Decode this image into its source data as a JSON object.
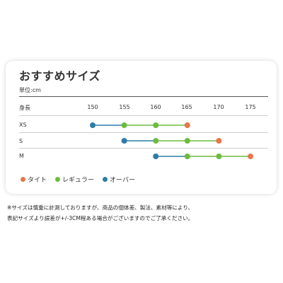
{
  "title": "おすすめサイズ",
  "unit_label": "単位:cm",
  "header_label": "身長",
  "ticks": [
    "150",
    "155",
    "160",
    "165",
    "170",
    "175"
  ],
  "rows": [
    {
      "label": "XS",
      "points": [
        150,
        155,
        160,
        165
      ],
      "kinds": [
        "over",
        "regular",
        "regular",
        "tight"
      ]
    },
    {
      "label": "S",
      "points": [
        155,
        160,
        165,
        170
      ],
      "kinds": [
        "over",
        "regular",
        "regular",
        "tight"
      ]
    },
    {
      "label": "M",
      "points": [
        160,
        165,
        170,
        175
      ],
      "kinds": [
        "over",
        "regular",
        "regular",
        "tight"
      ]
    }
  ],
  "legend": [
    {
      "key": "tight",
      "label": "タイト"
    },
    {
      "key": "regular",
      "label": "レギュラー"
    },
    {
      "key": "over",
      "label": "オーバー"
    }
  ],
  "colors": {
    "tight": "#E8764B",
    "regular": "#6DBB3E",
    "over": "#2E7CA8"
  },
  "note_line1": "※サイズは慎重に計測しておりますが、商品の個体差、製法、素材等により、",
  "note_line2": "表記サイズより誤差が+/-3CM程ある場合がございますのでご了承ください。"
}
